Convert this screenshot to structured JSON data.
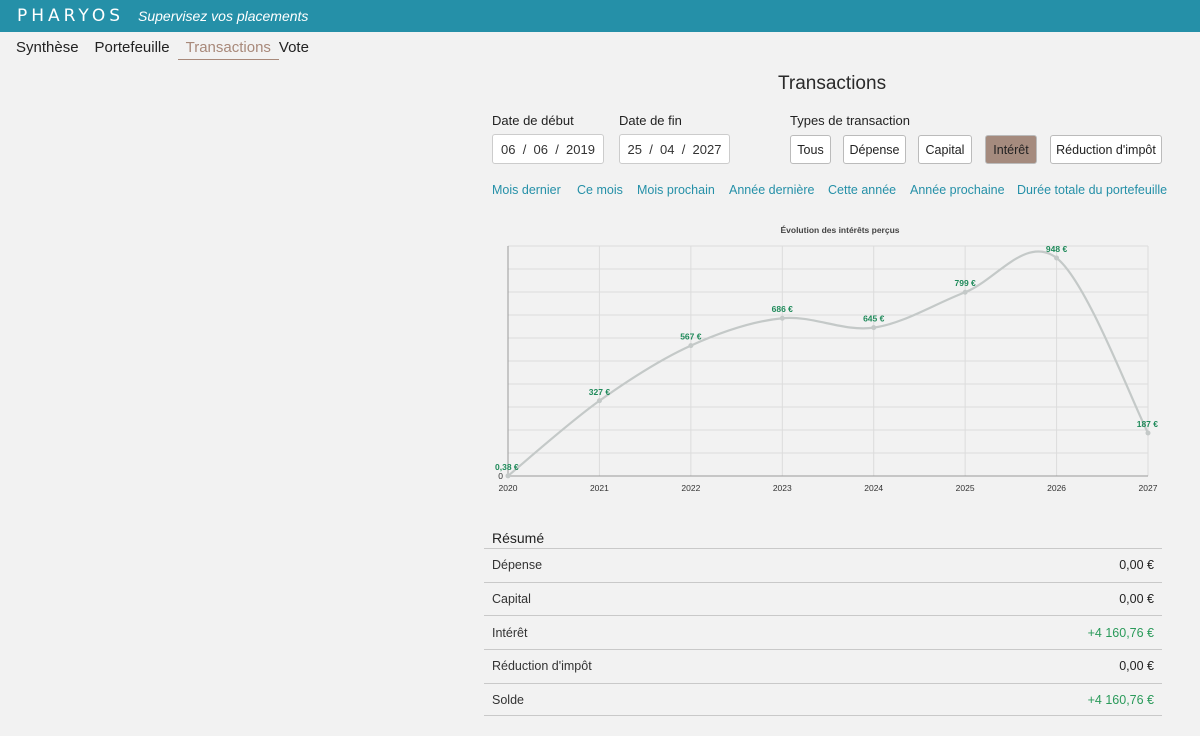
{
  "header": {
    "brand": "PHARYOS",
    "tagline": "Supervisez vos placements"
  },
  "nav": [
    {
      "label": "Synthèse"
    },
    {
      "label": "Portefeuille"
    },
    {
      "label": "Transactions",
      "active": true
    },
    {
      "label": "Vote"
    }
  ],
  "page_title": "Transactions",
  "start_date": {
    "label": "Date de début",
    "value": "06  /  06  /  2019"
  },
  "end_date": {
    "label": "Date de fin",
    "value": "25  /  04  /  2027"
  },
  "types": {
    "label": "Types de transaction",
    "buttons": [
      "Tous",
      "Dépense",
      "Capital",
      "Intérêt",
      "Réduction d'impôt"
    ],
    "active": "Intérêt"
  },
  "quick_ranges": [
    "Mois dernier",
    "Ce mois",
    "Mois prochain",
    "Année dernière",
    "Cette année",
    "Année prochaine",
    "Durée totale du portefeuille"
  ],
  "chart_data": {
    "type": "line",
    "title": "Évolution des intérêts perçus",
    "x": [
      "2020",
      "2021",
      "2022",
      "2023",
      "2024",
      "2025",
      "2026",
      "2027"
    ],
    "series": [
      {
        "values": [
          0.38,
          327,
          567,
          686,
          645,
          799,
          948,
          187
        ],
        "labels": [
          "0,38 €",
          "327 €",
          "567 €",
          "686 €",
          "645 €",
          "799 €",
          "948 €",
          "187 €"
        ]
      }
    ],
    "y_tick": "0",
    "ylim": [
      0,
      1000
    ],
    "grid": true,
    "line_color": "#c4c9c8",
    "label_color": "#1f8a5a"
  },
  "resume": {
    "title": "Résumé",
    "rows": [
      {
        "label": "Dépense",
        "value": "0,00 €",
        "positive": false
      },
      {
        "label": "Capital",
        "value": "0,00 €",
        "positive": false
      },
      {
        "label": "Intérêt",
        "value": "+4 160,76 €",
        "positive": true
      },
      {
        "label": "Réduction d'impôt",
        "value": "0,00 €",
        "positive": false
      },
      {
        "label": "Solde",
        "value": "+4 160,76 €",
        "positive": true
      }
    ]
  }
}
